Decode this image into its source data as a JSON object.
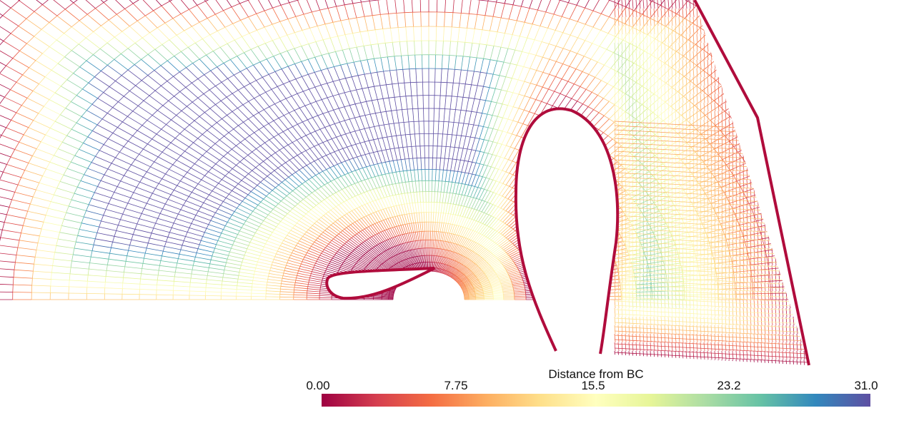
{
  "color_map": {
    "name": "Spectral",
    "stops": [
      "#9e0142",
      "#d53e4f",
      "#f46d43",
      "#fdae61",
      "#fee08b",
      "#ffffbf",
      "#e6f598",
      "#abdda4",
      "#66c2a5",
      "#3288bd",
      "#5e4fa2"
    ],
    "range": [
      0.0,
      31.0
    ]
  },
  "scalar_bar": {
    "title": "Distance from BC",
    "ticks": [
      "0.00",
      "7.75",
      "15.5",
      "23.2",
      "31.0"
    ]
  },
  "background_color": "#ffffff"
}
